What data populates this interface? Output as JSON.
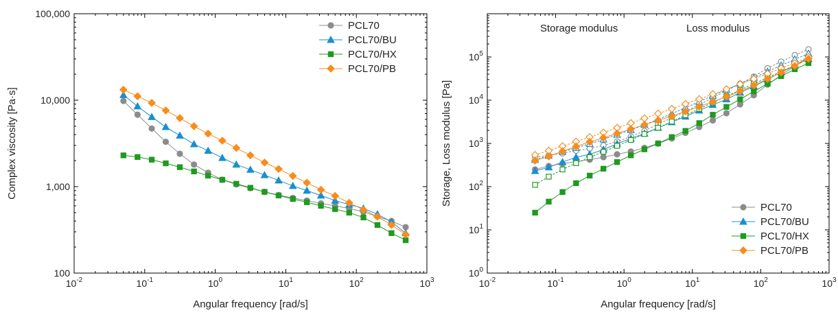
{
  "chart_data": [
    {
      "type": "line",
      "id": "viscosity",
      "title": "",
      "xlabel": "Angular frequency [rad/s]",
      "ylabel": "Complex viscosity [Pa·s]",
      "xscale": "log",
      "yscale": "log",
      "xlim": [
        0.01,
        1000
      ],
      "ylim": [
        100,
        100000
      ],
      "x_ticklabels": [
        {
          "base": "10",
          "exp": "-2"
        },
        {
          "base": "10",
          "exp": "-1"
        },
        {
          "base": "10",
          "exp": "0"
        },
        {
          "base": "10",
          "exp": "1"
        },
        {
          "base": "10",
          "exp": "2"
        },
        {
          "base": "10",
          "exp": "3"
        }
      ],
      "y_ticklabels": [
        "100",
        "1,000",
        "10,000",
        "100,000"
      ],
      "legend_position": "top-right",
      "x": [
        0.05,
        0.0792,
        0.126,
        0.199,
        0.315,
        0.5,
        0.792,
        1.26,
        1.99,
        3.15,
        5,
        7.92,
        12.6,
        19.9,
        31.5,
        50,
        79.2,
        126,
        199,
        315,
        500
      ],
      "series": [
        {
          "name": "PCL70",
          "color": "#8c8c8c",
          "marker": "circle",
          "values": [
            9800,
            6800,
            4700,
            3300,
            2400,
            1800,
            1450,
            1200,
            1060,
            960,
            870,
            800,
            740,
            690,
            640,
            600,
            560,
            510,
            450,
            400,
            340
          ]
        },
        {
          "name": "PCL70/BU",
          "color": "#1a8fd0",
          "marker": "triangle",
          "values": [
            11500,
            8500,
            6400,
            4900,
            3900,
            3100,
            2600,
            2150,
            1800,
            1570,
            1360,
            1180,
            1020,
            900,
            790,
            690,
            620,
            560,
            480,
            390,
            290
          ]
        },
        {
          "name": "PCL70/HX",
          "color": "#1f9a1f",
          "marker": "square",
          "values": [
            2300,
            2200,
            2050,
            1860,
            1680,
            1500,
            1340,
            1200,
            1080,
            970,
            870,
            790,
            720,
            660,
            600,
            550,
            500,
            440,
            360,
            290,
            240
          ]
        },
        {
          "name": "PCL70/PB",
          "color": "#f88c1c",
          "marker": "diamond",
          "values": [
            13200,
            11100,
            9300,
            7600,
            6200,
            5000,
            4100,
            3400,
            2800,
            2300,
            1900,
            1600,
            1330,
            1110,
            920,
            780,
            650,
            540,
            450,
            360,
            280
          ]
        }
      ]
    },
    {
      "type": "line",
      "id": "moduli",
      "title": "",
      "xlabel": "Angular frequency [rad/s]",
      "ylabel": "Storage, Loss modulus [Pa]",
      "xscale": "log",
      "yscale": "log",
      "xlim": [
        0.01,
        1000
      ],
      "ylim": [
        1,
        1000000
      ],
      "x_ticklabels": [
        {
          "base": "10",
          "exp": "-2"
        },
        {
          "base": "10",
          "exp": "-1"
        },
        {
          "base": "10",
          "exp": "0"
        },
        {
          "base": "10",
          "exp": "1"
        },
        {
          "base": "10",
          "exp": "2"
        },
        {
          "base": "10",
          "exp": "3"
        }
      ],
      "y_ticklabels": [
        {
          "base": "10",
          "exp": "0"
        },
        {
          "base": "10",
          "exp": "1"
        },
        {
          "base": "10",
          "exp": "2"
        },
        {
          "base": "10",
          "exp": "3"
        },
        {
          "base": "10",
          "exp": "4"
        },
        {
          "base": "10",
          "exp": "5"
        }
      ],
      "annotations": [
        "Storage modulus",
        "Loss modulus"
      ],
      "legend_position": "bottom-right",
      "storage_marker": "filled",
      "loss_marker": "open",
      "x": [
        0.05,
        0.0792,
        0.126,
        0.199,
        0.315,
        0.5,
        0.792,
        1.26,
        1.99,
        3.15,
        5,
        7.92,
        12.6,
        19.9,
        31.5,
        50,
        79.2,
        126,
        199,
        315,
        500
      ],
      "series": [
        {
          "name": "PCL70",
          "color": "#8c8c8c",
          "marker": "circle",
          "storage": [
            250,
            300,
            340,
            380,
            420,
            480,
            560,
            650,
            790,
            990,
            1300,
            1750,
            2400,
            3400,
            5000,
            8000,
            13000,
            23000,
            38000,
            62000,
            100000
          ],
          "loss": [
            480,
            530,
            590,
            680,
            760,
            900,
            1100,
            1450,
            1950,
            2800,
            3900,
            5500,
            7800,
            11500,
            16500,
            24000,
            35000,
            55000,
            78000,
            110000,
            150000
          ]
        },
        {
          "name": "PCL70/BU",
          "color": "#1a8fd0",
          "marker": "triangle",
          "storage": [
            230,
            280,
            370,
            480,
            560,
            720,
            980,
            1300,
            1700,
            2300,
            3100,
            4200,
            5800,
            7800,
            10500,
            15000,
            21000,
            30000,
            45000,
            63000,
            90000
          ],
          "loss": [
            420,
            520,
            640,
            790,
            980,
            1240,
            1600,
            2050,
            2700,
            3600,
            4900,
            6700,
            9200,
            12800,
            17500,
            24000,
            33000,
            46000,
            64000,
            88000,
            120000
          ]
        },
        {
          "name": "PCL70/HX",
          "color": "#1f9a1f",
          "marker": "square",
          "storage": [
            25,
            45,
            75,
            120,
            180,
            260,
            370,
            530,
            730,
            1000,
            1400,
            1950,
            2950,
            4600,
            7000,
            10500,
            16000,
            24000,
            36000,
            52000,
            72000
          ],
          "loss": [
            110,
            170,
            250,
            350,
            480,
            640,
            880,
            1200,
            1650,
            2300,
            3200,
            4500,
            6300,
            8800,
            12300,
            17200,
            24000,
            33000,
            46000,
            64000,
            92000
          ]
        },
        {
          "name": "PCL70/PB",
          "color": "#f88c1c",
          "marker": "diamond",
          "storage": [
            400,
            500,
            660,
            850,
            1080,
            1350,
            1700,
            2150,
            2700,
            3400,
            4300,
            5500,
            7100,
            9200,
            12000,
            16000,
            22000,
            31000,
            44000,
            62000,
            90000
          ],
          "loss": [
            540,
            680,
            860,
            1100,
            1400,
            1780,
            2300,
            2950,
            3800,
            4900,
            6300,
            8200,
            10600,
            13800,
            18000,
            23500,
            31000,
            41000,
            55000,
            72000,
            100000
          ]
        }
      ]
    }
  ]
}
